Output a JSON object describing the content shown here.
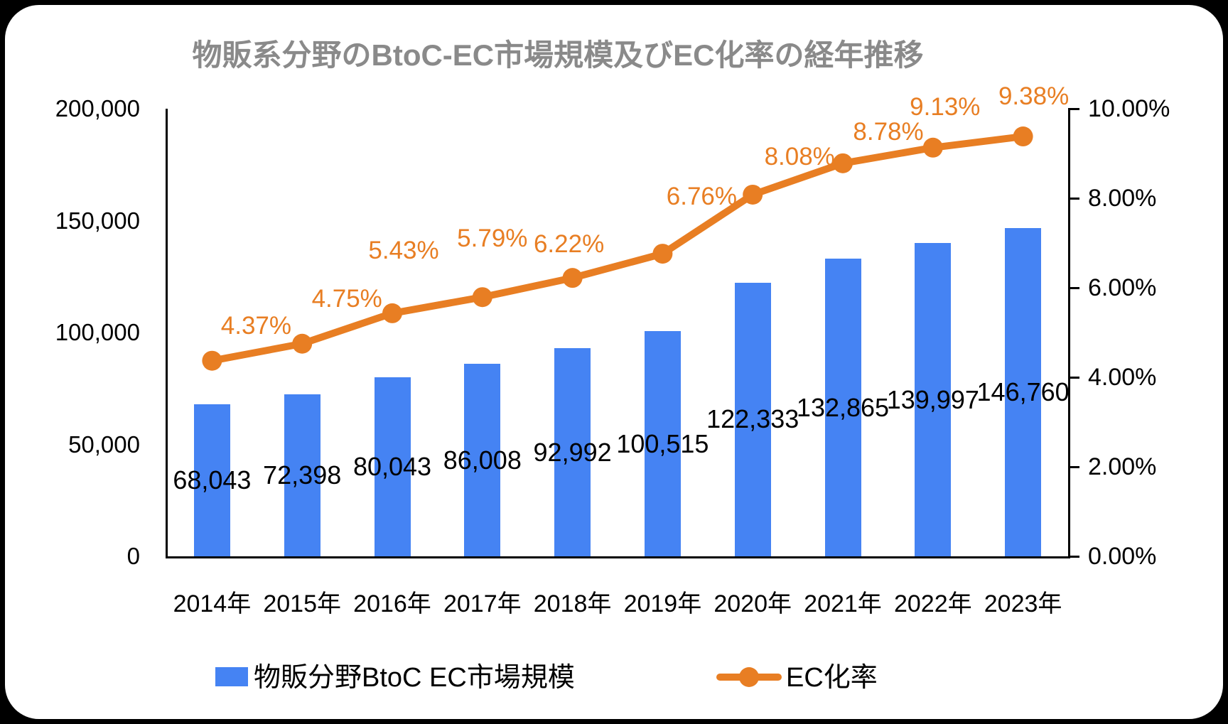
{
  "chart_data": {
    "type": "combo-bar-line",
    "title": "物販系分野のBtoC-EC市場規模及びEC化率の経年推移",
    "categories": [
      "2014年",
      "2015年",
      "2016年",
      "2017年",
      "2018年",
      "2019年",
      "2020年",
      "2021年",
      "2022年",
      "2023年"
    ],
    "series": [
      {
        "name": "物販分野BtoC EC市場規模",
        "type": "bar",
        "axis": "left",
        "color": "#4583F3",
        "values": [
          68043,
          72398,
          80043,
          86008,
          92992,
          100515,
          122333,
          132865,
          139997,
          146760
        ],
        "labels": [
          "68,043",
          "72,398",
          "80,043",
          "86,008",
          "92,992",
          "100,515",
          "122,333",
          "132,865",
          "139,997",
          "146,760"
        ]
      },
      {
        "name": "EC化率",
        "type": "line",
        "axis": "right",
        "color": "#E87E23",
        "values": [
          4.37,
          4.75,
          5.43,
          5.79,
          6.22,
          6.76,
          8.08,
          8.78,
          9.13,
          9.38
        ],
        "labels": [
          "4.37%",
          "4.75%",
          "5.43%",
          "5.79%",
          "6.22%",
          "6.76%",
          "8.08%",
          "8.78%",
          "9.13%",
          "9.38%"
        ]
      }
    ],
    "left_axis": {
      "min": 0,
      "max": 200000,
      "tick_values": [
        200000,
        150000,
        100000,
        50000,
        0
      ],
      "tick_labels": [
        "200,000",
        "150,000",
        "100,000",
        "50,000",
        "0"
      ]
    },
    "right_axis": {
      "min": 0,
      "max": 10,
      "tick_values": [
        10,
        8,
        6,
        4,
        2,
        0
      ],
      "tick_labels": [
        "10.00%",
        "8.00%",
        "6.00%",
        "4.00%",
        "2.00%",
        "0.00%"
      ]
    },
    "legend": {
      "position": "bottom",
      "items": [
        "物販分野BtoC EC市場規模",
        "EC化率"
      ]
    },
    "grid": "off"
  },
  "colors": {
    "bar": "#4583F3",
    "line": "#E87E23",
    "title": "#8a8a8a",
    "axis": "#000000",
    "frame_background": "#000000",
    "card_background": "#ffffff"
  }
}
